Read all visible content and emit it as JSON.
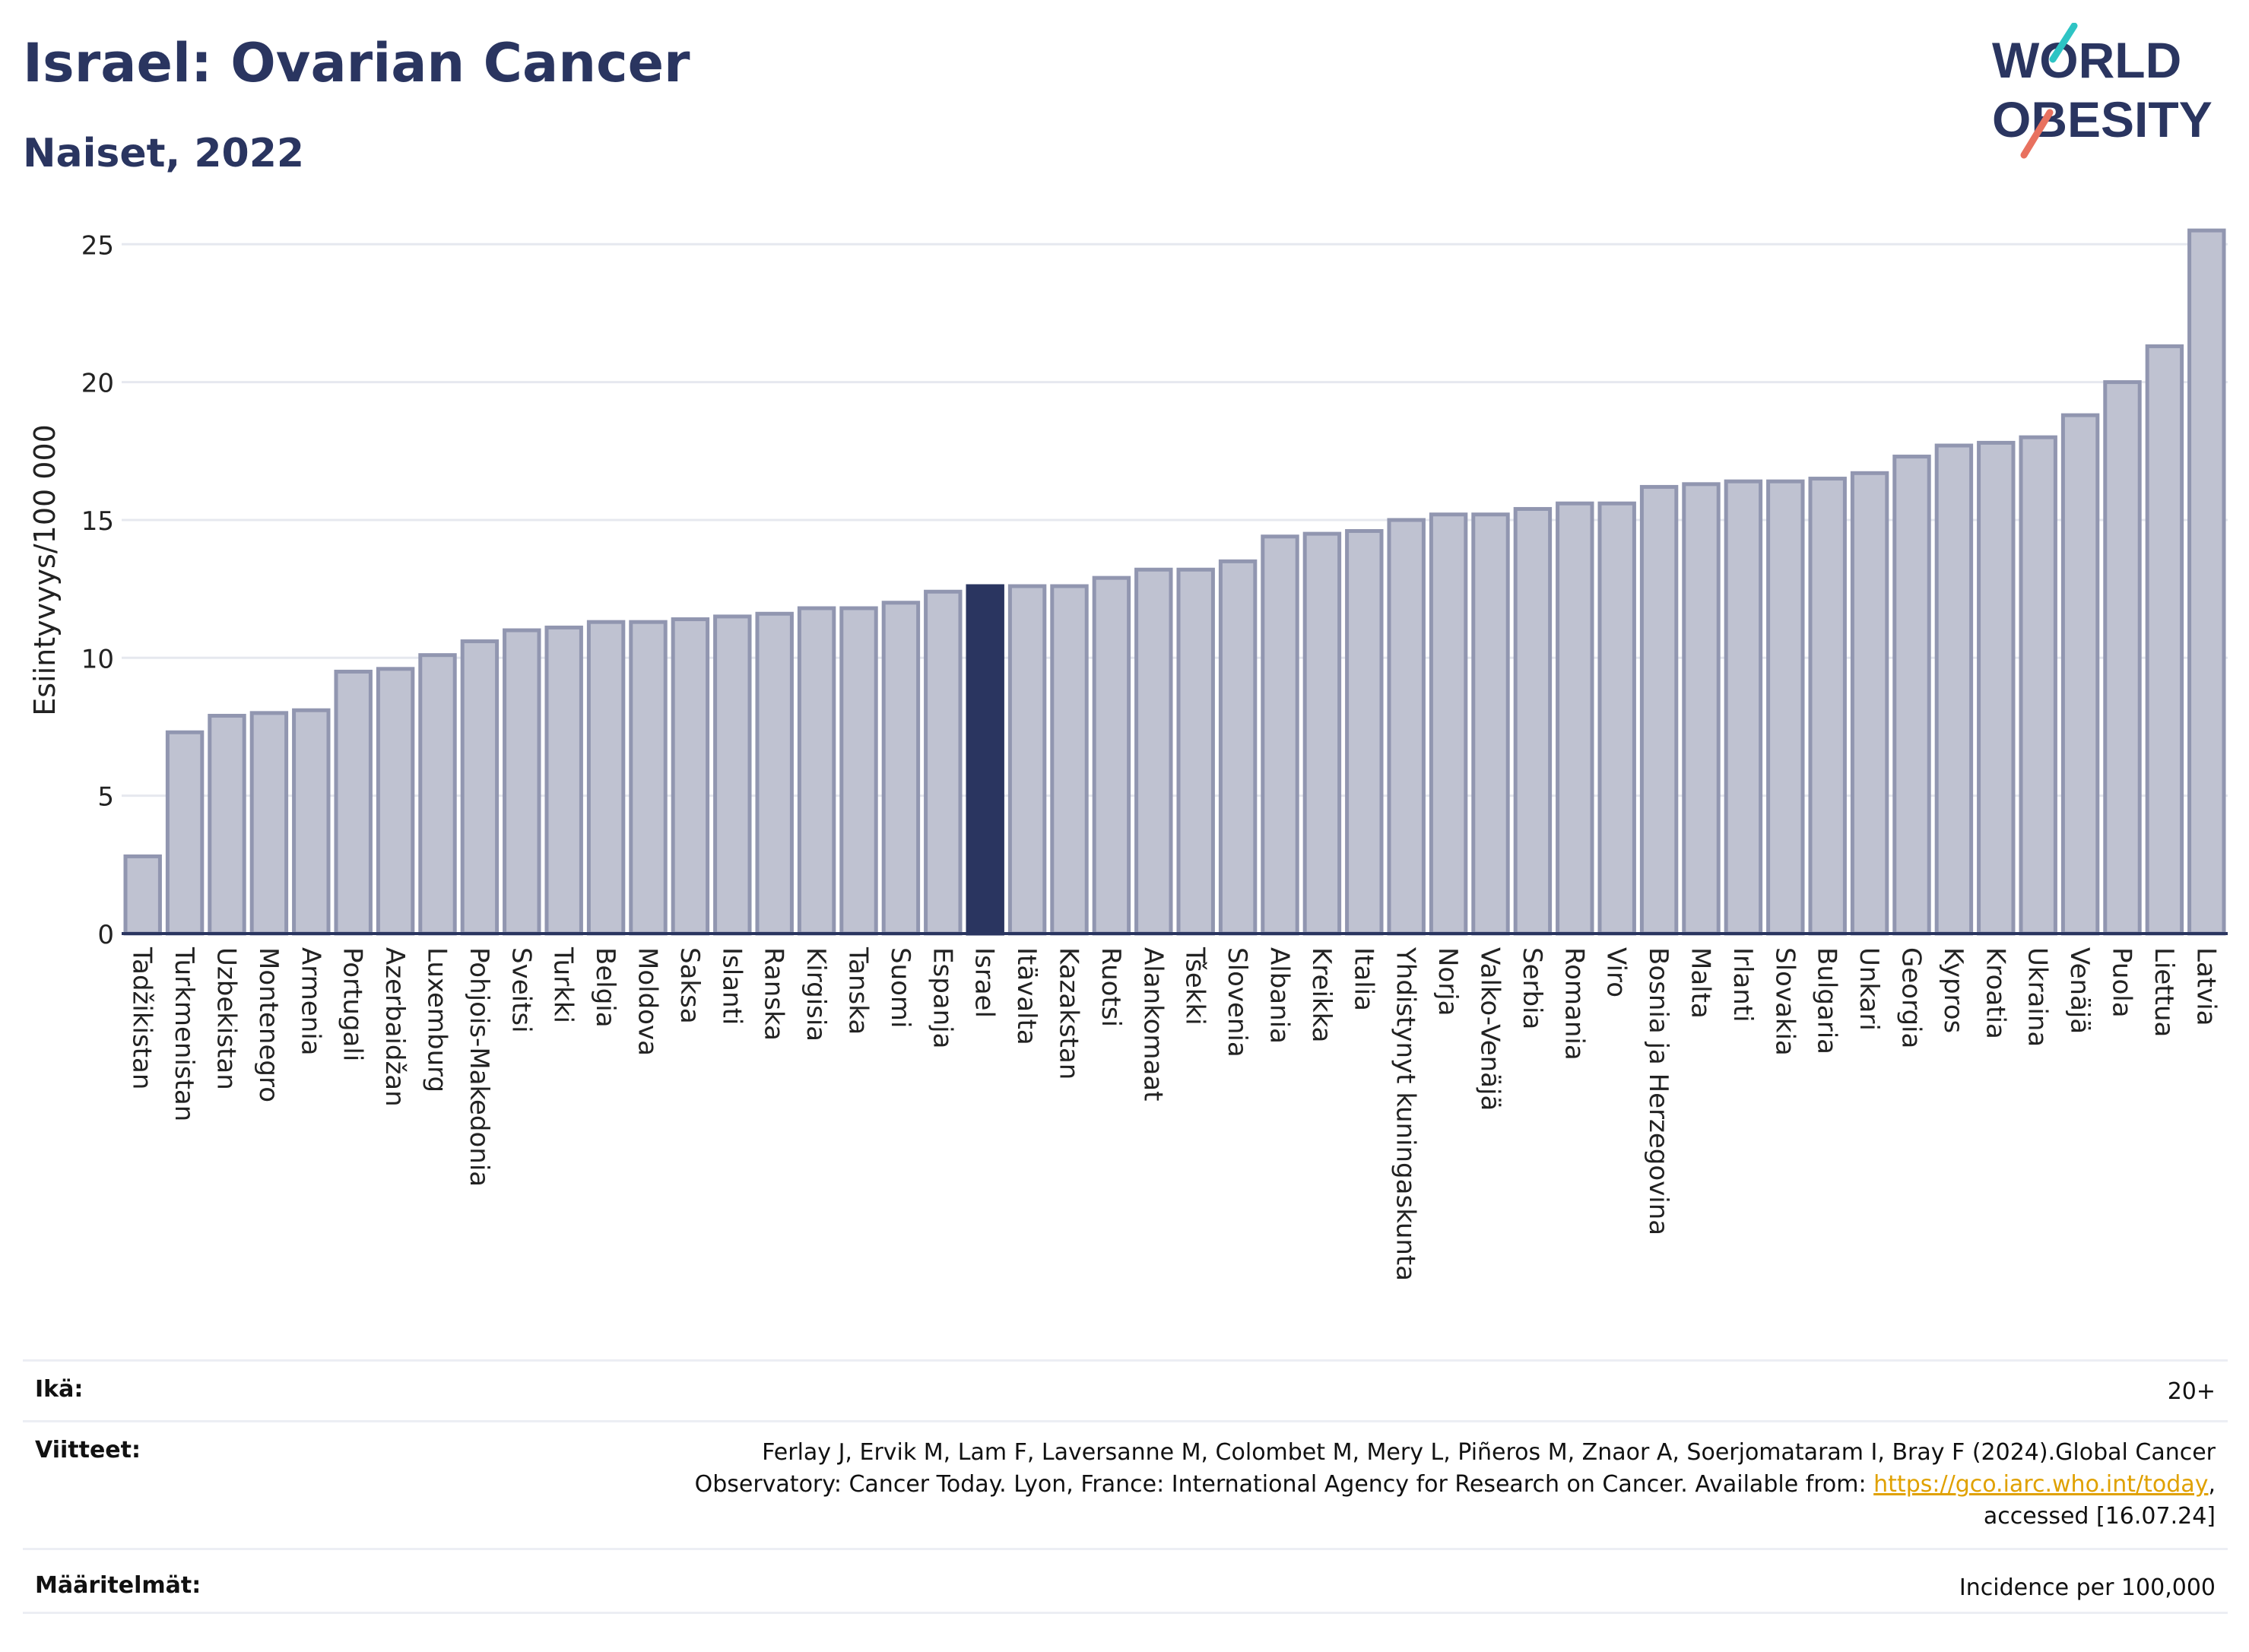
{
  "title": "Israel: Ovarian Cancer",
  "subtitle": "Naiset, 2022",
  "logo": {
    "line1": "WORLD",
    "line2": "OBESITY"
  },
  "colors": {
    "bar": "#bfc2d1",
    "bar_stroke": "#9196b0",
    "highlight": "#2a3560",
    "title": "#2a3560",
    "logo_teal": "#2ec4c4",
    "logo_coral": "#e8715f"
  },
  "chart_data": {
    "type": "bar",
    "ylabel": "Esiintyvyys/100 000",
    "ylim": [
      0,
      26
    ],
    "yticks": [
      0,
      5,
      10,
      15,
      20,
      25
    ],
    "grid": true,
    "highlight": "Israel",
    "categories": [
      "Tadžikistan",
      "Turkmenistan",
      "Uzbekistan",
      "Montenegro",
      "Armenia",
      "Portugali",
      "Azerbaidžan",
      "Luxemburg",
      "Pohjois-Makedonia",
      "Sveitsi",
      "Turkki",
      "Belgia",
      "Moldova",
      "Saksa",
      "Islanti",
      "Ranska",
      "Kirgisia",
      "Tanska",
      "Suomi",
      "Espanja",
      "Israel",
      "Itävalta",
      "Kazakstan",
      "Ruotsi",
      "Alankomaat",
      "Tšekki",
      "Slovenia",
      "Albania",
      "Kreikka",
      "Italia",
      "Yhdistynyt kuningaskunta",
      "Norja",
      "Valko-Venäjä",
      "Serbia",
      "Romania",
      "Viro",
      "Bosnia ja Herzegovina",
      "Malta",
      "Irlanti",
      "Slovakia",
      "Bulgaria",
      "Unkari",
      "Georgia",
      "Kypros",
      "Kroatia",
      "Ukraina",
      "Venäjä",
      "Puola",
      "Liettua",
      "Latvia"
    ],
    "values": [
      2.8,
      7.3,
      7.9,
      8.0,
      8.1,
      9.5,
      9.6,
      10.1,
      10.6,
      11.0,
      11.1,
      11.3,
      11.3,
      11.4,
      11.5,
      11.6,
      11.8,
      11.8,
      12.0,
      12.4,
      12.6,
      12.6,
      12.6,
      12.9,
      13.2,
      13.2,
      13.5,
      14.4,
      14.5,
      14.6,
      15.0,
      15.2,
      15.2,
      15.4,
      15.6,
      15.6,
      16.2,
      16.3,
      16.4,
      16.4,
      16.5,
      16.7,
      17.3,
      17.7,
      17.8,
      18.0,
      18.8,
      20.0,
      21.3,
      25.5
    ]
  },
  "info": {
    "age_label": "Ikä:",
    "age_value": "20+",
    "refs_label": "Viitteet:",
    "refs_line1": "Ferlay J, Ervik M, Lam F, Laversanne M, Colombet M, Mery L, Piñeros M, Znaor A, Soerjomataram I, Bray F (2024).Global Cancer",
    "refs_line2_pre": "Observatory: Cancer Today. Lyon, France: International Agency for Research on Cancer. Available from: ",
    "refs_link": "https://gco.iarc.who.int/today",
    "refs_line2_post": ",",
    "refs_line3": "accessed [16.07.24]",
    "def_label": "Määritelmät:",
    "def_value": "Incidence per 100,000"
  }
}
